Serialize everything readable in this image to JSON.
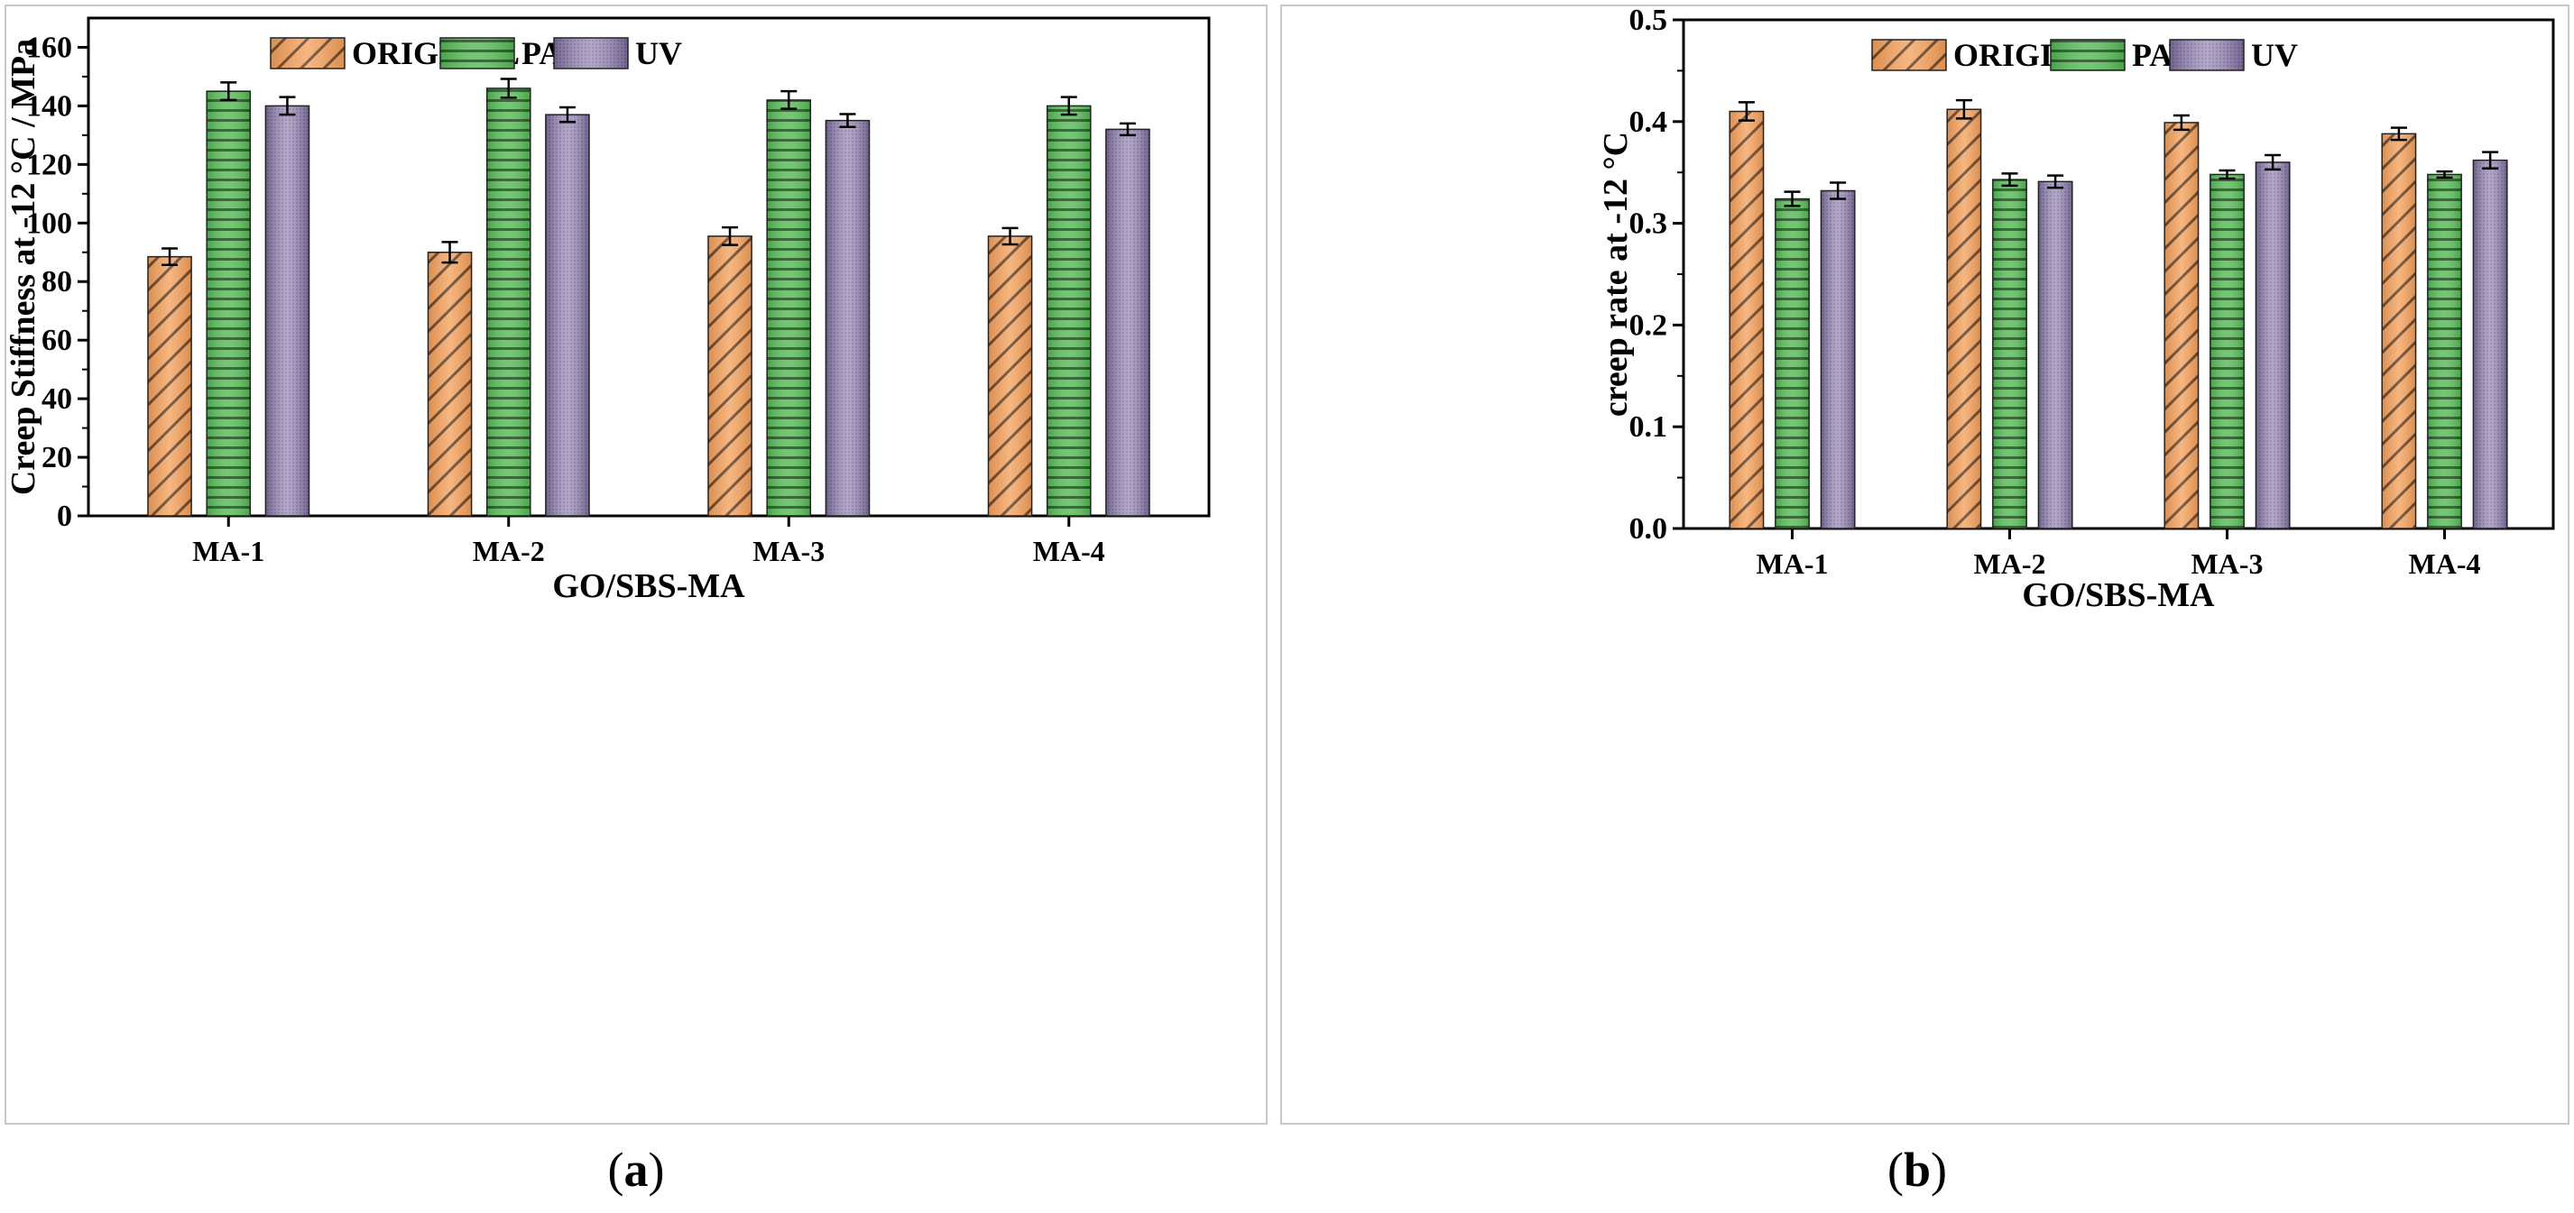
{
  "colors": {
    "original": "#f4a460",
    "original_dark": "#c26a30",
    "pav": "#4db34d",
    "pav_dark": "#1f6b1f",
    "uv": "#8a7aa8",
    "uv_dark": "#4b3f66"
  },
  "legend": {
    "original": "ORIGINAL",
    "pav": "PAV",
    "uv": "UV"
  },
  "captions": {
    "a": "a",
    "b": "b"
  },
  "chart_data": [
    {
      "id": "a",
      "type": "bar",
      "title": "",
      "xlabel": "GO/SBS-MA",
      "ylabel": "Creep Stiffness at -12 °C / MPa",
      "categories": [
        "MA-1",
        "MA-2",
        "MA-3",
        "MA-4"
      ],
      "ylim": [
        0,
        170
      ],
      "yticks": [
        0,
        20,
        40,
        60,
        80,
        100,
        120,
        140,
        160
      ],
      "ytick_labels": [
        "0",
        "20",
        "40",
        "60",
        "80",
        "100",
        "120",
        "140",
        "160"
      ],
      "series": [
        {
          "name": "ORIGINAL",
          "values": [
            88.5,
            90.0,
            95.5,
            95.5
          ],
          "errors": [
            2.8,
            3.5,
            3.0,
            2.8
          ]
        },
        {
          "name": "PAV",
          "values": [
            145.0,
            146.0,
            142.0,
            140.0
          ],
          "errors": [
            3.0,
            3.2,
            3.0,
            3.0
          ]
        },
        {
          "name": "UV",
          "values": [
            140.0,
            137.0,
            135.0,
            132.0
          ],
          "errors": [
            3.0,
            2.5,
            2.2,
            2.0
          ]
        }
      ]
    },
    {
      "id": "b",
      "type": "bar",
      "title": "",
      "xlabel": "GO/SBS-MA",
      "ylabel": "creep rate at -12 °C",
      "categories": [
        "MA-1",
        "MA-2",
        "MA-3",
        "MA-4"
      ],
      "ylim": [
        0,
        0.5
      ],
      "yticks": [
        0,
        0.1,
        0.2,
        0.3,
        0.4,
        0.5
      ],
      "ytick_labels": [
        "0.0",
        "0.1",
        "0.2",
        "0.3",
        "0.4",
        "0.5"
      ],
      "series": [
        {
          "name": "ORIGINAL",
          "values": [
            0.41,
            0.412,
            0.399,
            0.388
          ],
          "errors": [
            0.009,
            0.009,
            0.007,
            0.006
          ]
        },
        {
          "name": "PAV",
          "values": [
            0.324,
            0.343,
            0.348,
            0.348
          ],
          "errors": [
            0.007,
            0.006,
            0.004,
            0.003
          ]
        },
        {
          "name": "UV",
          "values": [
            0.332,
            0.341,
            0.36,
            0.362
          ],
          "errors": [
            0.008,
            0.006,
            0.007,
            0.008
          ]
        }
      ]
    }
  ]
}
